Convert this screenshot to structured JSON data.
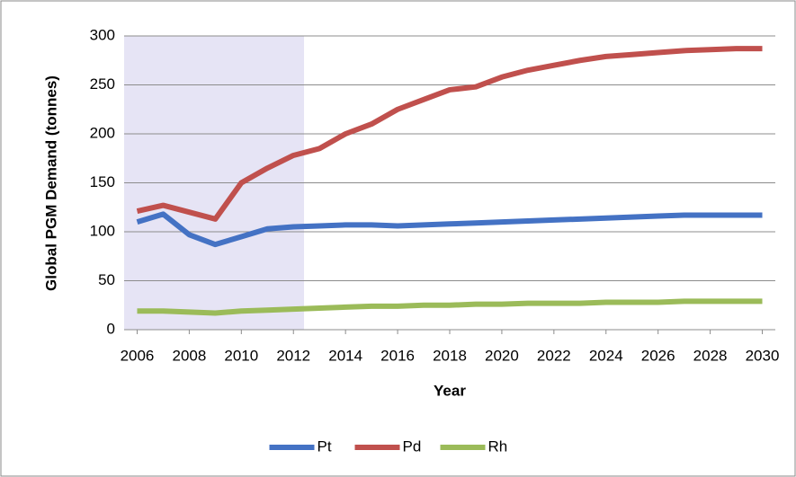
{
  "chart_data": {
    "type": "line",
    "y_label": "Global PGM Demand (tonnes)",
    "x_label": "Year",
    "x": [
      2006,
      2007,
      2008,
      2009,
      2010,
      2011,
      2012,
      2013,
      2014,
      2015,
      2016,
      2017,
      2018,
      2019,
      2020,
      2021,
      2022,
      2023,
      2024,
      2025,
      2026,
      2027,
      2028,
      2029,
      2030
    ],
    "series": [
      {
        "name": "Pt",
        "color": "#4472c4",
        "values": [
          110,
          118,
          97,
          87,
          95,
          103,
          105,
          106,
          107,
          107,
          106,
          107,
          108,
          109,
          110,
          111,
          112,
          113,
          114,
          115,
          116,
          117,
          117,
          117,
          117
        ]
      },
      {
        "name": "Pd",
        "color": "#c0504d",
        "values": [
          121,
          127,
          120,
          113,
          150,
          165,
          178,
          185,
          200,
          210,
          225,
          235,
          245,
          248,
          258,
          265,
          270,
          275,
          279,
          281,
          283,
          285,
          286,
          287,
          287
        ]
      },
      {
        "name": "Rh",
        "color": "#9bbb59",
        "values": [
          19,
          19,
          18,
          17,
          19,
          20,
          21,
          22,
          23,
          24,
          24,
          25,
          25,
          26,
          26,
          27,
          27,
          27,
          28,
          28,
          28,
          29,
          29,
          29,
          29
        ]
      }
    ],
    "xlim": [
      2005.5,
      2030.5
    ],
    "xticks": [
      2006,
      2008,
      2010,
      2012,
      2014,
      2016,
      2018,
      2020,
      2022,
      2024,
      2026,
      2028,
      2030
    ],
    "ylim": [
      0,
      300
    ],
    "yticks": [
      0,
      50,
      100,
      150,
      200,
      250,
      300
    ],
    "grid": true,
    "legend": "bottom"
  }
}
